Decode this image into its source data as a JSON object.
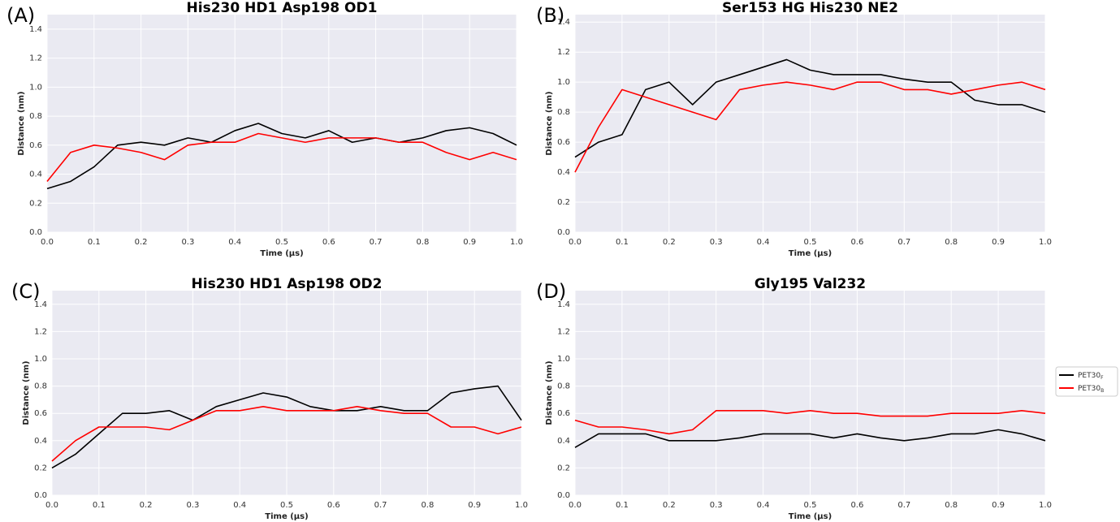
{
  "chart_data": [
    {
      "type": "line",
      "panel_label": "(A)",
      "title": "His230 HD1 Asp198 OD1",
      "xlabel": "Time (µs)",
      "ylabel": "Distance (nm)",
      "x": [
        0,
        0.05,
        0.1,
        0.15,
        0.2,
        0.25,
        0.3,
        0.35,
        0.4,
        0.45,
        0.5,
        0.55,
        0.6,
        0.65,
        0.7,
        0.75,
        0.8,
        0.85,
        0.9,
        0.95,
        1.0
      ],
      "series": [
        {
          "color": "#000000",
          "values": [
            0.3,
            0.35,
            0.45,
            0.6,
            0.62,
            0.6,
            0.65,
            0.62,
            0.7,
            0.75,
            0.68,
            0.65,
            0.7,
            0.62,
            0.65,
            0.62,
            0.65,
            0.7,
            0.72,
            0.68,
            0.6
          ]
        },
        {
          "color": "#ff0000",
          "values": [
            0.35,
            0.55,
            0.6,
            0.58,
            0.55,
            0.5,
            0.6,
            0.62,
            0.62,
            0.68,
            0.65,
            0.62,
            0.65,
            0.65,
            0.65,
            0.62,
            0.62,
            0.55,
            0.5,
            0.55,
            0.5
          ]
        }
      ],
      "xlim": [
        0,
        1
      ],
      "ylim": [
        0,
        1.5
      ],
      "grid": true,
      "xticks": [
        {
          "value": 0,
          "label": "0.0"
        },
        {
          "value": 0.1,
          "label": "0.1"
        },
        {
          "value": 0.2,
          "label": "0.2"
        },
        {
          "value": 0.3,
          "label": "0.3"
        },
        {
          "value": 0.4,
          "label": "0.4"
        },
        {
          "value": 0.5,
          "label": "0.5"
        },
        {
          "value": 0.6,
          "label": "0.6"
        },
        {
          "value": 0.7,
          "label": "0.7"
        },
        {
          "value": 0.8,
          "label": "0.8"
        },
        {
          "value": 0.9,
          "label": "0.9"
        },
        {
          "value": 1,
          "label": "1.0"
        }
      ],
      "yticks": [
        {
          "value": 0,
          "label": "0.0"
        },
        0.2,
        0.4,
        0.6,
        0.8,
        {
          "value": 1,
          "label": "1.0"
        },
        1.2,
        1.4
      ]
    },
    {
      "type": "line",
      "panel_label": "(B)",
      "title": "Ser153 HG His230 NE2",
      "xlabel": "Time (µs)",
      "ylabel": "Distance (nm)",
      "x": [
        0,
        0.05,
        0.1,
        0.15,
        0.2,
        0.25,
        0.3,
        0.35,
        0.4,
        0.45,
        0.5,
        0.55,
        0.6,
        0.65,
        0.7,
        0.75,
        0.8,
        0.85,
        0.9,
        0.95,
        1.0
      ],
      "series": [
        {
          "color": "#000000",
          "values": [
            0.5,
            0.6,
            0.65,
            0.95,
            1.0,
            0.85,
            1.0,
            1.05,
            1.1,
            1.15,
            1.08,
            1.05,
            1.05,
            1.05,
            1.02,
            1.0,
            1.0,
            0.88,
            0.85,
            0.85,
            0.8
          ]
        },
        {
          "color": "#ff0000",
          "values": [
            0.4,
            0.7,
            0.95,
            0.9,
            0.85,
            0.8,
            0.75,
            0.95,
            0.98,
            1.0,
            0.98,
            0.95,
            1.0,
            1.0,
            0.95,
            0.95,
            0.92,
            0.95,
            0.98,
            1.0,
            0.95
          ]
        }
      ],
      "xlim": [
        0,
        1
      ],
      "ylim": [
        0,
        1.45
      ],
      "grid": true,
      "xticks": [
        {
          "value": 0,
          "label": "0.0"
        },
        {
          "value": 0.1,
          "label": "0.1"
        },
        {
          "value": 0.2,
          "label": "0.2"
        },
        {
          "value": 0.3,
          "label": "0.3"
        },
        {
          "value": 0.4,
          "label": "0.4"
        },
        {
          "value": 0.5,
          "label": "0.5"
        },
        {
          "value": 0.6,
          "label": "0.6"
        },
        {
          "value": 0.7,
          "label": "0.7"
        },
        {
          "value": 0.8,
          "label": "0.8"
        },
        {
          "value": 0.9,
          "label": "0.9"
        },
        {
          "value": 1,
          "label": "1.0"
        }
      ],
      "yticks": [
        {
          "value": 0,
          "label": "0.0"
        },
        0.2,
        0.4,
        0.6,
        0.8,
        {
          "value": 1,
          "label": "1.0"
        },
        1.2,
        1.4
      ]
    },
    {
      "type": "line",
      "panel_label": "(C)",
      "title": "His230 HD1 Asp198 OD2",
      "xlabel": "Time (µs)",
      "ylabel": "Distance (nm)",
      "x": [
        0,
        0.05,
        0.1,
        0.15,
        0.2,
        0.25,
        0.3,
        0.35,
        0.4,
        0.45,
        0.5,
        0.55,
        0.6,
        0.65,
        0.7,
        0.75,
        0.8,
        0.85,
        0.9,
        0.95,
        1.0
      ],
      "series": [
        {
          "color": "#000000",
          "values": [
            0.2,
            0.3,
            0.45,
            0.6,
            0.6,
            0.62,
            0.55,
            0.65,
            0.7,
            0.75,
            0.72,
            0.65,
            0.62,
            0.62,
            0.65,
            0.62,
            0.62,
            0.75,
            0.78,
            0.8,
            0.55
          ]
        },
        {
          "color": "#ff0000",
          "values": [
            0.25,
            0.4,
            0.5,
            0.5,
            0.5,
            0.48,
            0.55,
            0.62,
            0.62,
            0.65,
            0.62,
            0.62,
            0.62,
            0.65,
            0.62,
            0.6,
            0.6,
            0.5,
            0.5,
            0.45,
            0.5
          ]
        }
      ],
      "xlim": [
        0,
        1
      ],
      "ylim": [
        0,
        1.5
      ],
      "grid": true,
      "xticks": [
        {
          "value": 0,
          "label": "0.0"
        },
        {
          "value": 0.1,
          "label": "0.1"
        },
        {
          "value": 0.2,
          "label": "0.2"
        },
        {
          "value": 0.3,
          "label": "0.3"
        },
        {
          "value": 0.4,
          "label": "0.4"
        },
        {
          "value": 0.5,
          "label": "0.5"
        },
        {
          "value": 0.6,
          "label": "0.6"
        },
        {
          "value": 0.7,
          "label": "0.7"
        },
        {
          "value": 0.8,
          "label": "0.8"
        },
        {
          "value": 0.9,
          "label": "0.9"
        },
        {
          "value": 1,
          "label": "1.0"
        }
      ],
      "yticks": [
        {
          "value": 0,
          "label": "0.0"
        },
        0.2,
        0.4,
        0.6,
        0.8,
        {
          "value": 1,
          "label": "1.0"
        },
        1.2,
        1.4
      ]
    },
    {
      "type": "line",
      "panel_label": "(D)",
      "title": "Gly195 Val232",
      "xlabel": "Time (µs)",
      "ylabel": "Distance (nm)",
      "x": [
        0,
        0.05,
        0.1,
        0.15,
        0.2,
        0.25,
        0.3,
        0.35,
        0.4,
        0.45,
        0.5,
        0.55,
        0.6,
        0.65,
        0.7,
        0.75,
        0.8,
        0.85,
        0.9,
        0.95,
        1.0
      ],
      "series": [
        {
          "name": "PET30",
          "subscript": "F",
          "color": "#000000",
          "values": [
            0.35,
            0.45,
            0.45,
            0.45,
            0.4,
            0.4,
            0.4,
            0.42,
            0.45,
            0.45,
            0.45,
            0.42,
            0.45,
            0.42,
            0.4,
            0.42,
            0.45,
            0.45,
            0.48,
            0.45,
            0.4
          ]
        },
        {
          "name": "PET30",
          "subscript": "B",
          "color": "#ff0000",
          "values": [
            0.55,
            0.5,
            0.5,
            0.48,
            0.45,
            0.48,
            0.62,
            0.62,
            0.62,
            0.6,
            0.62,
            0.6,
            0.6,
            0.58,
            0.58,
            0.58,
            0.6,
            0.6,
            0.6,
            0.62,
            0.6
          ]
        }
      ],
      "xlim": [
        0,
        1
      ],
      "ylim": [
        0,
        1.5
      ],
      "grid": true,
      "xticks": [
        {
          "value": 0,
          "label": "0.0"
        },
        {
          "value": 0.1,
          "label": "0.1"
        },
        {
          "value": 0.2,
          "label": "0.2"
        },
        {
          "value": 0.3,
          "label": "0.3"
        },
        {
          "value": 0.4,
          "label": "0.4"
        },
        {
          "value": 0.5,
          "label": "0.5"
        },
        {
          "value": 0.6,
          "label": "0.6"
        },
        {
          "value": 0.7,
          "label": "0.7"
        },
        {
          "value": 0.8,
          "label": "0.8"
        },
        {
          "value": 0.9,
          "label": "0.9"
        },
        {
          "value": 1,
          "label": "1.0"
        }
      ],
      "yticks": [
        {
          "value": 0,
          "label": "0.0"
        },
        0.2,
        0.4,
        0.6,
        0.8,
        {
          "value": 1,
          "label": "1.0"
        },
        1.2,
        1.4
      ]
    }
  ]
}
